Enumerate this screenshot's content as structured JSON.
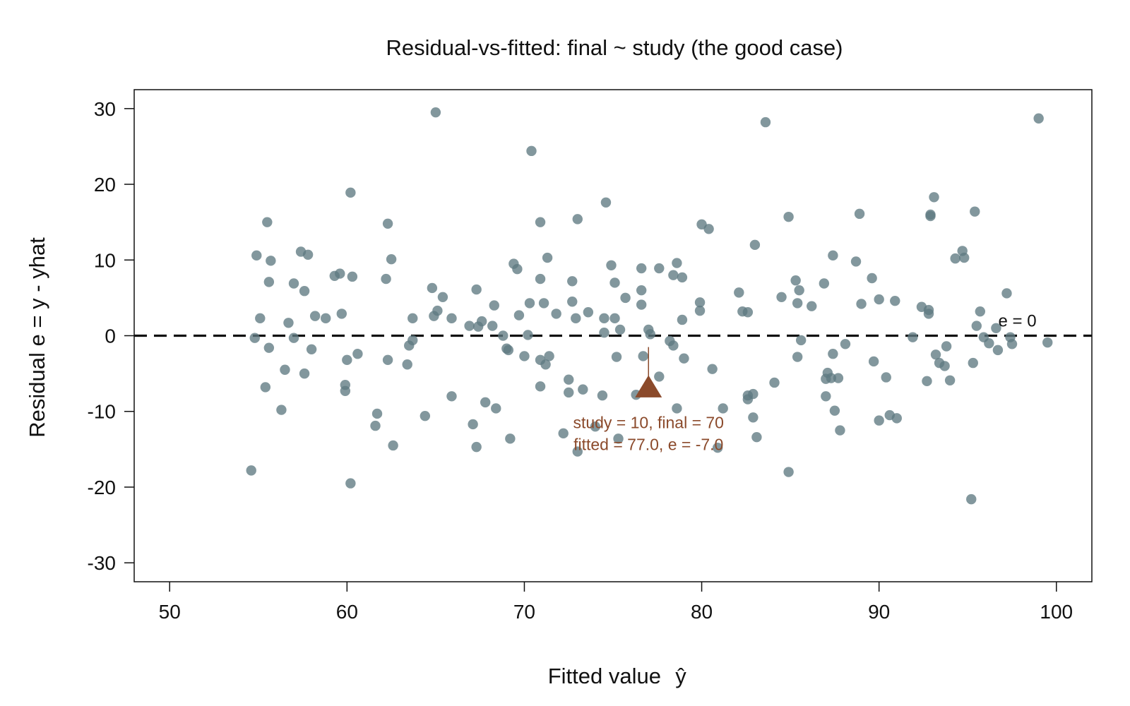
{
  "chart_data": {
    "type": "scatter",
    "title": "Residual-vs-fitted: final ~ study (the good case)",
    "xlabel": "Fitted value",
    "xlabel_symbol": "ŷ",
    "ylabel": "Residual  e = y - yhat",
    "xlim": [
      48,
      102
    ],
    "ylim": [
      -32.5,
      32.5
    ],
    "x_ticks": [
      50,
      60,
      70,
      80,
      90,
      100
    ],
    "y_ticks": [
      -30,
      -20,
      -10,
      0,
      10,
      20,
      30
    ],
    "grid": false,
    "point_color": "#5f7a82",
    "reference_line": {
      "y": 0,
      "style": "dashed",
      "label": "e = 0"
    },
    "highlight": {
      "x": 77.0,
      "y": -7.0,
      "marker": "triangle",
      "color": "#8b4a2b",
      "label_line1": "study = 10, final = 70",
      "label_line2": "fitted = 77.0, e = -7.0"
    },
    "points": [
      [
        54.6,
        -17.8
      ],
      [
        54.8,
        -0.3
      ],
      [
        54.9,
        10.6
      ],
      [
        55.1,
        2.3
      ],
      [
        55.4,
        -6.8
      ],
      [
        55.5,
        15.0
      ],
      [
        55.6,
        7.1
      ],
      [
        55.6,
        -1.6
      ],
      [
        55.7,
        9.9
      ],
      [
        56.3,
        -9.8
      ],
      [
        56.5,
        -4.5
      ],
      [
        56.7,
        1.7
      ],
      [
        57.0,
        6.9
      ],
      [
        57.0,
        -0.3
      ],
      [
        57.4,
        11.1
      ],
      [
        57.6,
        -5.0
      ],
      [
        57.6,
        5.9
      ],
      [
        57.8,
        10.7
      ],
      [
        58.0,
        -1.8
      ],
      [
        58.2,
        2.6
      ],
      [
        58.8,
        2.3
      ],
      [
        59.3,
        7.9
      ],
      [
        59.6,
        8.2
      ],
      [
        59.7,
        2.9
      ],
      [
        59.9,
        -7.3
      ],
      [
        59.9,
        -6.5
      ],
      [
        60.0,
        -3.2
      ],
      [
        60.2,
        18.9
      ],
      [
        60.2,
        -19.5
      ],
      [
        60.3,
        7.8
      ],
      [
        60.6,
        -2.4
      ],
      [
        61.6,
        -11.9
      ],
      [
        61.7,
        -10.3
      ],
      [
        62.2,
        7.5
      ],
      [
        62.3,
        14.8
      ],
      [
        62.3,
        -3.2
      ],
      [
        62.5,
        10.1
      ],
      [
        62.6,
        -14.5
      ],
      [
        63.4,
        -3.8
      ],
      [
        63.5,
        -1.3
      ],
      [
        63.7,
        -0.6
      ],
      [
        63.7,
        2.3
      ],
      [
        64.4,
        -10.6
      ],
      [
        64.8,
        6.3
      ],
      [
        64.9,
        2.6
      ],
      [
        65.0,
        29.5
      ],
      [
        65.1,
        3.3
      ],
      [
        65.4,
        5.1
      ],
      [
        65.9,
        2.3
      ],
      [
        65.9,
        -8.0
      ],
      [
        66.9,
        1.3
      ],
      [
        67.1,
        -11.7
      ],
      [
        67.3,
        -14.7
      ],
      [
        67.3,
        6.1
      ],
      [
        67.4,
        1.2
      ],
      [
        67.6,
        1.9
      ],
      [
        67.8,
        -8.8
      ],
      [
        68.2,
        1.3
      ],
      [
        68.3,
        4.0
      ],
      [
        68.4,
        -9.6
      ],
      [
        68.8,
        0.0
      ],
      [
        69.0,
        -1.7
      ],
      [
        69.1,
        -1.9
      ],
      [
        69.2,
        -13.6
      ],
      [
        69.4,
        9.5
      ],
      [
        69.6,
        8.8
      ],
      [
        69.7,
        2.7
      ],
      [
        70.0,
        -2.7
      ],
      [
        70.2,
        0.1
      ],
      [
        70.3,
        4.3
      ],
      [
        70.4,
        24.4
      ],
      [
        70.9,
        15.0
      ],
      [
        70.9,
        -3.2
      ],
      [
        70.9,
        -6.7
      ],
      [
        70.9,
        7.5
      ],
      [
        71.1,
        4.3
      ],
      [
        71.2,
        -3.8
      ],
      [
        71.3,
        10.3
      ],
      [
        71.4,
        -2.7
      ],
      [
        71.8,
        2.9
      ],
      [
        72.2,
        -12.9
      ],
      [
        72.5,
        -7.5
      ],
      [
        72.5,
        -5.8
      ],
      [
        72.7,
        4.5
      ],
      [
        72.7,
        7.2
      ],
      [
        72.9,
        2.3
      ],
      [
        73.0,
        -15.3
      ],
      [
        73.0,
        15.4
      ],
      [
        73.3,
        -7.1
      ],
      [
        73.6,
        3.1
      ],
      [
        74.0,
        -12.0
      ],
      [
        74.4,
        -7.9
      ],
      [
        74.5,
        0.4
      ],
      [
        74.5,
        2.3
      ],
      [
        74.6,
        17.6
      ],
      [
        74.9,
        9.3
      ],
      [
        75.1,
        2.3
      ],
      [
        75.1,
        7.0
      ],
      [
        75.2,
        -2.8
      ],
      [
        75.3,
        -13.6
      ],
      [
        75.4,
        0.8
      ],
      [
        75.7,
        5.0
      ],
      [
        76.3,
        -7.8
      ],
      [
        76.6,
        6.0
      ],
      [
        76.6,
        8.9
      ],
      [
        76.6,
        4.1
      ],
      [
        76.7,
        -2.7
      ],
      [
        77.0,
        0.8
      ],
      [
        77.1,
        0.2
      ],
      [
        77.6,
        -5.4
      ],
      [
        77.6,
        8.9
      ],
      [
        78.2,
        -0.7
      ],
      [
        78.4,
        8.0
      ],
      [
        78.4,
        -1.3
      ],
      [
        78.6,
        -9.6
      ],
      [
        78.6,
        9.6
      ],
      [
        78.9,
        7.7
      ],
      [
        78.9,
        2.1
      ],
      [
        79.0,
        -3.0
      ],
      [
        79.9,
        4.4
      ],
      [
        79.9,
        3.3
      ],
      [
        80.0,
        14.7
      ],
      [
        80.4,
        14.1
      ],
      [
        80.6,
        -4.4
      ],
      [
        80.9,
        -14.8
      ],
      [
        81.2,
        -9.6
      ],
      [
        82.1,
        5.7
      ],
      [
        82.3,
        3.2
      ],
      [
        82.6,
        3.1
      ],
      [
        82.6,
        -7.9
      ],
      [
        82.6,
        -8.4
      ],
      [
        82.9,
        -10.8
      ],
      [
        82.9,
        -7.7
      ],
      [
        83.0,
        12.0
      ],
      [
        83.1,
        -13.4
      ],
      [
        83.6,
        28.2
      ],
      [
        84.1,
        -6.2
      ],
      [
        84.5,
        5.1
      ],
      [
        84.9,
        -18.0
      ],
      [
        84.9,
        15.7
      ],
      [
        85.3,
        7.3
      ],
      [
        85.4,
        4.3
      ],
      [
        85.4,
        -2.8
      ],
      [
        85.5,
        6.0
      ],
      [
        85.6,
        -0.6
      ],
      [
        86.2,
        3.9
      ],
      [
        86.9,
        6.9
      ],
      [
        87.0,
        -5.7
      ],
      [
        87.0,
        -8.0
      ],
      [
        87.1,
        -4.9
      ],
      [
        87.3,
        -5.6
      ],
      [
        87.4,
        -2.4
      ],
      [
        87.4,
        10.6
      ],
      [
        87.5,
        -9.9
      ],
      [
        87.7,
        -5.6
      ],
      [
        87.8,
        -12.5
      ],
      [
        88.1,
        -1.1
      ],
      [
        88.7,
        9.8
      ],
      [
        88.9,
        16.1
      ],
      [
        89.0,
        4.2
      ],
      [
        89.6,
        7.6
      ],
      [
        89.7,
        -3.4
      ],
      [
        90.0,
        4.8
      ],
      [
        90.0,
        -11.2
      ],
      [
        90.4,
        -5.5
      ],
      [
        90.6,
        -10.5
      ],
      [
        91.0,
        -10.9
      ],
      [
        90.9,
        4.6
      ],
      [
        91.9,
        -0.2
      ],
      [
        92.4,
        3.8
      ],
      [
        92.7,
        -6.0
      ],
      [
        92.8,
        3.4
      ],
      [
        92.8,
        2.9
      ],
      [
        92.9,
        16.0
      ],
      [
        92.9,
        15.8
      ],
      [
        93.1,
        18.3
      ],
      [
        93.2,
        -2.5
      ],
      [
        93.4,
        -3.6
      ],
      [
        93.7,
        -4.0
      ],
      [
        93.8,
        -1.4
      ],
      [
        94.0,
        -5.9
      ],
      [
        94.3,
        10.2
      ],
      [
        94.7,
        11.2
      ],
      [
        94.8,
        10.3
      ],
      [
        95.2,
        -21.6
      ],
      [
        95.3,
        -3.6
      ],
      [
        95.4,
        16.4
      ],
      [
        95.5,
        1.3
      ],
      [
        95.7,
        3.2
      ],
      [
        95.9,
        -0.2
      ],
      [
        96.2,
        -1.0
      ],
      [
        96.6,
        1.0
      ],
      [
        96.7,
        -1.9
      ],
      [
        97.2,
        5.6
      ],
      [
        97.4,
        -0.2
      ],
      [
        97.5,
        -1.1
      ],
      [
        99.0,
        28.7
      ],
      [
        99.5,
        -0.9
      ]
    ]
  }
}
